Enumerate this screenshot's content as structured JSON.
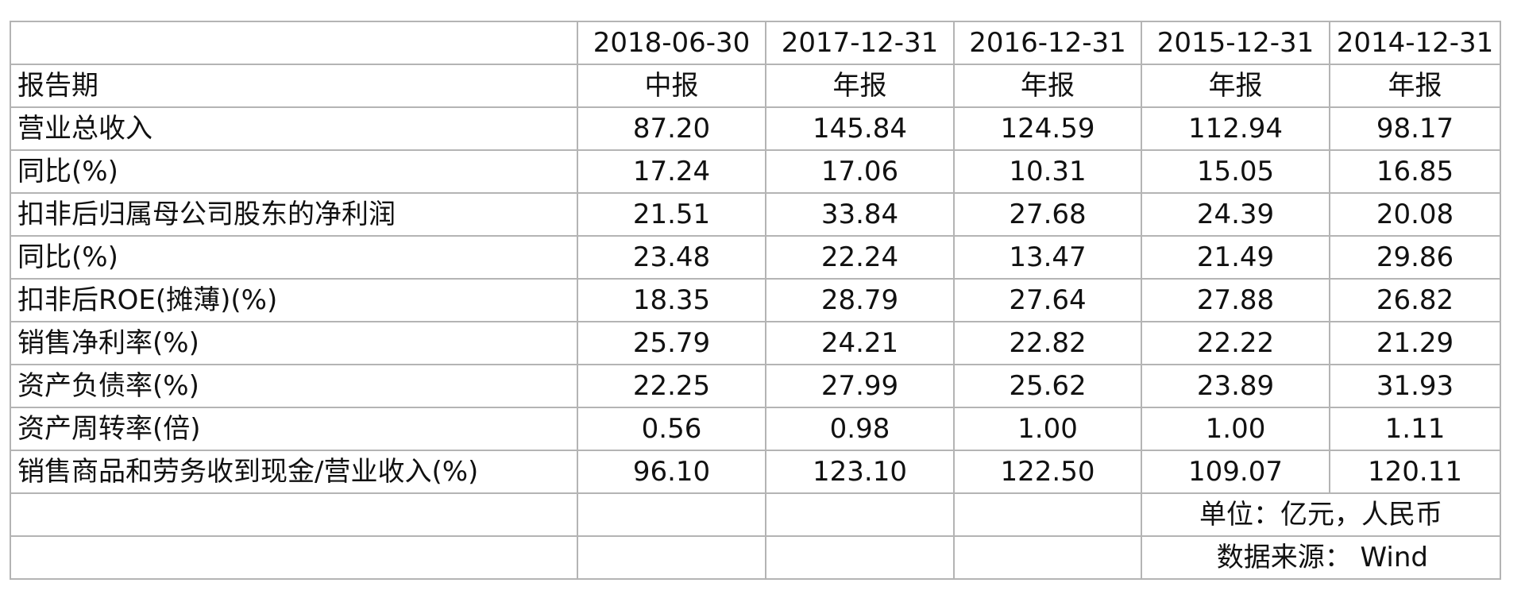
{
  "table": {
    "header": {
      "label": "",
      "dates": [
        "2018-06-30",
        "2017-12-31",
        "2016-12-31",
        "2015-12-31",
        "2014-12-31"
      ]
    },
    "rows": [
      {
        "label": "报告期",
        "values": [
          "中报",
          "年报",
          "年报",
          "年报",
          "年报"
        ]
      },
      {
        "label": "营业总收入",
        "values": [
          "87.20",
          "145.84",
          "124.59",
          "112.94",
          "98.17"
        ]
      },
      {
        "label": "同比(%)",
        "values": [
          "17.24",
          "17.06",
          "10.31",
          "15.05",
          "16.85"
        ]
      },
      {
        "label": "扣非后归属母公司股东的净利润",
        "values": [
          "21.51",
          "33.84",
          "27.68",
          "24.39",
          "20.08"
        ]
      },
      {
        "label": "同比(%)",
        "values": [
          "23.48",
          "22.24",
          "13.47",
          "21.49",
          "29.86"
        ]
      },
      {
        "label": "扣非后ROE(摊薄)(%)",
        "values": [
          "18.35",
          "28.79",
          "27.64",
          "27.88",
          "26.82"
        ]
      },
      {
        "label": "销售净利率(%)",
        "values": [
          "25.79",
          "24.21",
          "22.82",
          "22.22",
          "21.29"
        ]
      },
      {
        "label": "资产负债率(%)",
        "values": [
          "22.25",
          "27.99",
          "25.62",
          "23.89",
          "31.93"
        ]
      },
      {
        "label": "资产周转率(倍)",
        "values": [
          "0.56",
          "0.98",
          "1.00",
          "1.00",
          "1.11"
        ]
      },
      {
        "label": "销售商品和劳务收到现金/营业收入(%)",
        "values": [
          "96.10",
          "123.10",
          "122.50",
          "109.07",
          "120.11"
        ]
      }
    ],
    "notes": {
      "unit": "单位：亿元，人民币",
      "source": "数据来源：  Wind"
    }
  }
}
